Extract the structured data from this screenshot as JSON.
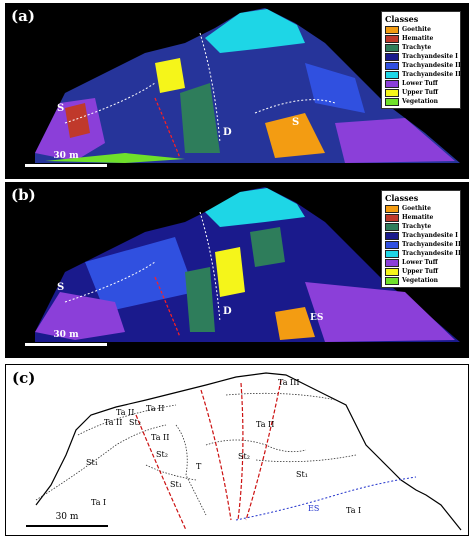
{
  "panels": {
    "a": {
      "letter": "(a)"
    },
    "b": {
      "letter": "(b)"
    },
    "c": {
      "letter": "(c)"
    }
  },
  "legend": {
    "title": "Classes",
    "items": [
      {
        "label": "Goethite",
        "color": "#f39c12"
      },
      {
        "label": "Hematite",
        "color": "#c0392b"
      },
      {
        "label": "Trachyte",
        "color": "#2e7d5b"
      },
      {
        "label": "Trachyandesite I",
        "color": "#1a1a8c"
      },
      {
        "label": "Trachyandesite II",
        "color": "#3050e0"
      },
      {
        "label": "Trachyandesite III",
        "color": "#1ed6e6"
      },
      {
        "label": "Lower Tuff",
        "color": "#8b3fd9"
      },
      {
        "label": "Upper Tuff",
        "color": "#f5f51a"
      },
      {
        "label": "Vegetation",
        "color": "#6fe02a"
      }
    ]
  },
  "scale": {
    "label": "30  m"
  },
  "map_labels_a": {
    "s_left": "S",
    "d": "D",
    "s_right": "S"
  },
  "map_labels_b": {
    "s": "S",
    "d": "D",
    "es": "ES"
  },
  "geologic_labels": {
    "ta_ii_1": "Ta II",
    "ta_ii_2": "Ta II",
    "st2_1": "St₂",
    "ta_ii_3": "Ta II",
    "ta_ii_4": "Ta II",
    "ta_ii_5": "Ta II",
    "ta_iii": "Ta III",
    "st1_left": "St₁",
    "st2_2": "St₂",
    "t": "T",
    "st2_3": "St₂",
    "st1_mid": "St₁",
    "st1_right": "St₁",
    "ta_i_left": "Ta I",
    "es": "ES",
    "ta_i_right": "Ta I"
  }
}
